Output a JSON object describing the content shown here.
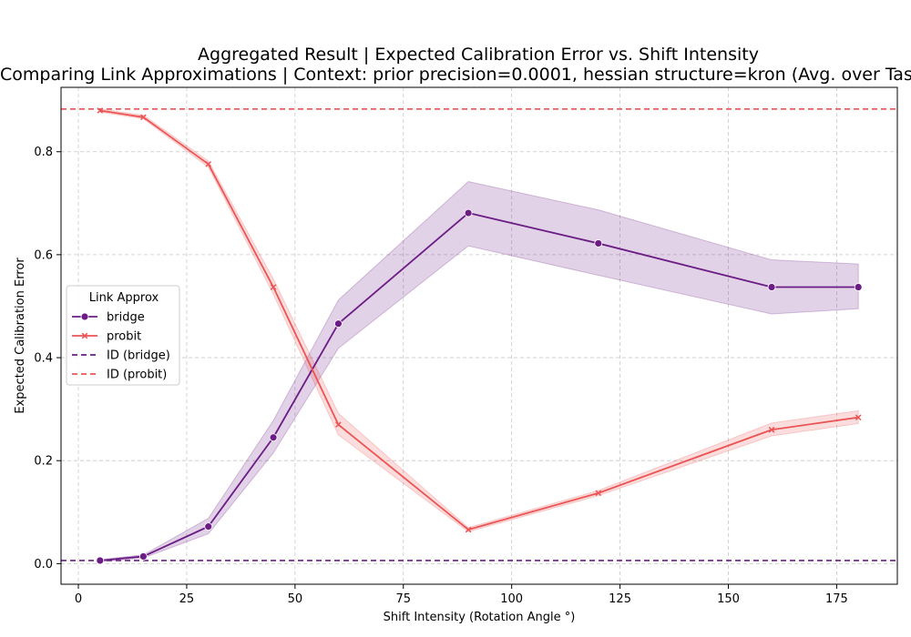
{
  "chart_data": {
    "type": "line",
    "title": "Aggregated Result | Expected Calibration Error vs. Shift Intensity",
    "subtitle": "Comparing Link Approximations | Context: prior precision=0.0001, hessian structure=kron (Avg. over Tasks)",
    "xlabel": "Shift Intensity (Rotation Angle °)",
    "ylabel": "Expected Calibration Error",
    "xlim": [
      -4,
      189
    ],
    "ylim": [
      -0.04,
      0.925
    ],
    "xticks": [
      0,
      25,
      50,
      75,
      100,
      125,
      150,
      175
    ],
    "yticks": [
      0.0,
      0.2,
      0.4,
      0.6,
      0.8
    ],
    "ytick_labels": [
      "0.0",
      "0.2",
      "0.4",
      "0.6",
      "0.8"
    ],
    "grid": true,
    "legend": {
      "title": "Link Approx",
      "placement": "center-left",
      "entries": [
        "bridge",
        "probit",
        "ID (bridge)",
        "ID (probit)"
      ]
    },
    "x": [
      5,
      15,
      30,
      45,
      60,
      90,
      120,
      160,
      180
    ],
    "series": [
      {
        "name": "bridge",
        "color": "#6b1d85",
        "marker": "circle",
        "values": [
          0.006,
          0.014,
          0.072,
          0.245,
          0.466,
          0.681,
          0.622,
          0.537,
          0.537
        ],
        "ci_lower": [
          0.004,
          0.011,
          0.058,
          0.215,
          0.418,
          0.617,
          0.56,
          0.485,
          0.495
        ],
        "ci_upper": [
          0.008,
          0.017,
          0.088,
          0.278,
          0.512,
          0.742,
          0.687,
          0.59,
          0.582
        ]
      },
      {
        "name": "probit",
        "color": "#ec5454",
        "marker": "x",
        "values": [
          0.88,
          0.867,
          0.776,
          0.537,
          0.27,
          0.066,
          0.137,
          0.26,
          0.284
        ],
        "ci_lower": [
          0.877,
          0.864,
          0.77,
          0.523,
          0.25,
          0.062,
          0.132,
          0.248,
          0.272
        ],
        "ci_upper": [
          0.883,
          0.871,
          0.782,
          0.553,
          0.292,
          0.07,
          0.142,
          0.273,
          0.297
        ]
      }
    ],
    "reference_lines": [
      {
        "name": "ID (bridge)",
        "value": 0.006,
        "color": "#6b1d85",
        "style": "dashed"
      },
      {
        "name": "ID (probit)",
        "value": 0.883,
        "color": "#ec5454",
        "style": "dashed"
      }
    ]
  }
}
